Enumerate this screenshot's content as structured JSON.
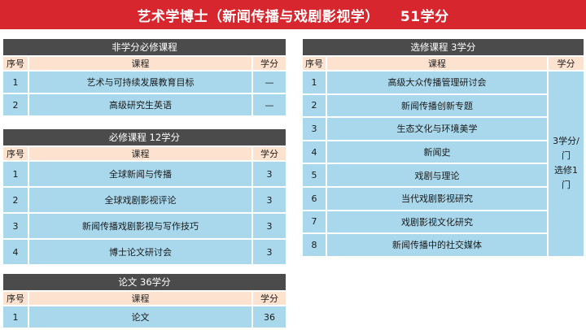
{
  "banner": {
    "title": "艺术学博士（新闻传播与戏剧影视学）",
    "credits": "51学分"
  },
  "headers": {
    "num": "序号",
    "course": "课程",
    "credit": "学分"
  },
  "nonCredit": {
    "title": "非学分必修课程",
    "rows": [
      {
        "num": "1",
        "course": "艺术与可持续发展教育目标",
        "credit": "—"
      },
      {
        "num": "2",
        "course": "高级研究生英语",
        "credit": "—"
      }
    ]
  },
  "required": {
    "title": "必修课程  12学分",
    "rows": [
      {
        "num": "1",
        "course": "全球新闻与传播",
        "credit": "3"
      },
      {
        "num": "2",
        "course": "全球戏剧影视评论",
        "credit": "3"
      },
      {
        "num": "3",
        "course": "新闻传播戏剧影视与写作技巧",
        "credit": "3"
      },
      {
        "num": "4",
        "course": "博士论文研讨会",
        "credit": "3"
      }
    ]
  },
  "thesis": {
    "title": "论文  36学分",
    "rows": [
      {
        "num": "1",
        "course": "论文",
        "credit": "36"
      }
    ]
  },
  "elective": {
    "title": "选修课程  3学分",
    "credit_note_line1": "3学分/门",
    "credit_note_line2": "选修1门",
    "rows": [
      {
        "num": "1",
        "course": "高级大众传播管理研讨会"
      },
      {
        "num": "2",
        "course": "新闻传播创新专题"
      },
      {
        "num": "3",
        "course": "生态文化与环境美学"
      },
      {
        "num": "4",
        "course": "新闻史"
      },
      {
        "num": "5",
        "course": "戏剧与理论"
      },
      {
        "num": "6",
        "course": "当代戏剧影视研究"
      },
      {
        "num": "7",
        "course": "戏剧影视文化研究"
      },
      {
        "num": "8",
        "course": "新闻传播中的社交媒体"
      }
    ]
  }
}
